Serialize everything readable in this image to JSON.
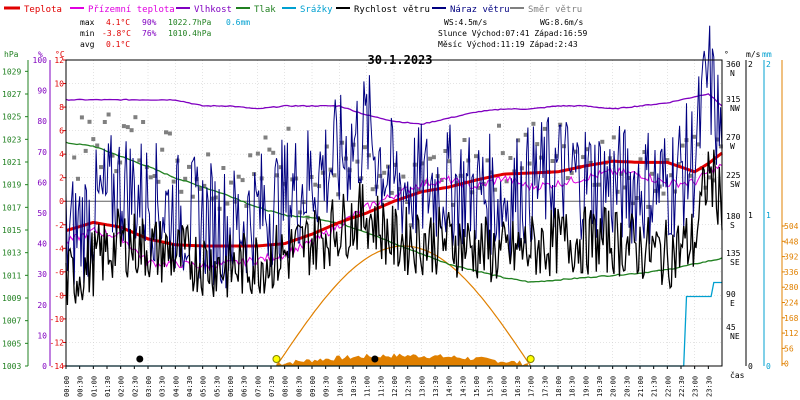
{
  "colors": {
    "teplota": "#e00000",
    "prizemni": "#e000e0",
    "vlhkost": "#8000c0",
    "tlak": "#208020",
    "srazky": "#00a0d0",
    "vitr": "#000000",
    "naraz": "#000080",
    "smer": "#808080",
    "radiation": "#e08000",
    "frame": "#000000",
    "grid": "#c8c8c8"
  },
  "legend": [
    {
      "label": "Teplota",
      "color": "#e00000"
    },
    {
      "label": "Přízemní teplota",
      "color": "#e000e0"
    },
    {
      "label": "Vlhkost",
      "color": "#8000c0"
    },
    {
      "label": "Tlak",
      "color": "#208020"
    },
    {
      "label": "Srážky",
      "color": "#00a0d0"
    },
    {
      "label": "Rychlost větru",
      "color": "#000000"
    },
    {
      "label": "Náraz větru",
      "color": "#000080"
    },
    {
      "label": "Směr větru",
      "color": "#808080"
    }
  ],
  "stats": {
    "max_label": "max",
    "min_label": "min",
    "avg_label": "avg",
    "max_temp": "4.1°C",
    "max_hum": "90%",
    "max_press": "1022.7hPa",
    "max_rain": "0.6mm",
    "min_temp": "-3.8°C",
    "min_hum": "76%",
    "min_press": "1010.4hPa",
    "avg_temp": "0.1°C"
  },
  "info": {
    "wind": "WS:4.5m/s",
    "gust": "WG:8.6m/s",
    "sun": "Slunce Východ:07:41  Západ:16:59",
    "moon": "Měsíc  Východ:11:19  Západ:2:43"
  },
  "chart_data": {
    "type": "line",
    "title": "30.1.2023",
    "xlabel": "čas",
    "x_ticks": [
      "00:00",
      "00:30",
      "01:00",
      "01:30",
      "02:00",
      "02:30",
      "03:00",
      "03:30",
      "04:00",
      "04:30",
      "05:00",
      "05:30",
      "06:00",
      "06:30",
      "07:00",
      "07:30",
      "08:00",
      "08:30",
      "09:00",
      "09:30",
      "10:00",
      "10:30",
      "11:00",
      "11:30",
      "12:00",
      "12:30",
      "13:00",
      "13:30",
      "14:00",
      "14:30",
      "15:00",
      "15:30",
      "16:00",
      "16:30",
      "17:00",
      "17:30",
      "18:00",
      "18:30",
      "19:00",
      "19:30",
      "20:00",
      "20:30",
      "21:00",
      "21:30",
      "22:00",
      "22:30",
      "23:00",
      "23:30"
    ],
    "axes": {
      "tlak_hpa": {
        "unit": "hPa",
        "ticks": [
          "1029",
          "1027",
          "1025",
          "1023",
          "1021",
          "1019",
          "1017",
          "1015",
          "1013",
          "1011",
          "1009",
          "1007",
          "1005",
          "1003"
        ],
        "range": [
          1003,
          1030
        ]
      },
      "vlhkost_pct": {
        "unit": "%",
        "ticks": [
          "100",
          "90",
          "80",
          "70",
          "60",
          "50",
          "40",
          "30",
          "20",
          "10",
          "0"
        ],
        "range": [
          0,
          100
        ]
      },
      "teplota_c": {
        "unit": "°C",
        "ticks": [
          "12",
          "10",
          "8",
          "6",
          "4",
          "2",
          "0",
          "-2",
          "-4",
          "-6",
          "-8",
          "-10",
          "-12",
          "-14"
        ],
        "range": [
          -14,
          12
        ]
      },
      "smer_deg": {
        "unit": "°",
        "ticks": [
          "360 N",
          "315 NW",
          "270 W",
          "225 SW",
          "180 S",
          "135 SE",
          "90 E",
          "45 NE"
        ]
      },
      "wind_ms": {
        "unit": "m/s",
        "ticks": [
          "2",
          "1",
          "0"
        ]
      },
      "rain_mm": {
        "unit": "mm",
        "ticks": [
          "2",
          "1",
          "0"
        ]
      },
      "radiation": {
        "ticks": [
          "504",
          "448",
          "392",
          "336",
          "280",
          "224",
          "168",
          "112",
          "56",
          "0"
        ]
      }
    },
    "series": [
      {
        "name": "Teplota",
        "unit": "°C",
        "x": [
          0,
          1,
          2,
          3,
          4,
          5,
          6,
          7,
          8,
          9,
          10,
          11,
          12,
          13,
          14,
          15,
          16,
          17,
          18,
          19,
          20,
          21,
          22,
          23,
          23.5,
          24
        ],
        "values": [
          -2.5,
          -1.8,
          -2.2,
          -3.2,
          -3.7,
          -3.8,
          -3.8,
          -3.8,
          -3.6,
          -2.8,
          -1.8,
          -1.0,
          0.0,
          0.8,
          1.2,
          1.8,
          2.3,
          2.4,
          2.5,
          3.0,
          3.4,
          3.3,
          3.3,
          2.5,
          3.2,
          4.1
        ]
      },
      {
        "name": "Přízemní teplota",
        "unit": "°C",
        "x": [
          0,
          1,
          2,
          3,
          4,
          5,
          6,
          7,
          8,
          9,
          10,
          11,
          12,
          13,
          14,
          15,
          16,
          17,
          18,
          19,
          20,
          21,
          22,
          23,
          23.5,
          24
        ],
        "values": [
          -3.5,
          -2.5,
          -3.0,
          -5.2,
          -5.3,
          -5.5,
          -5.3,
          -5.0,
          -4.5,
          -3.5,
          -2.0,
          -0.5,
          0.5,
          1.5,
          1.8,
          1.2,
          2.0,
          1.2,
          1.5,
          2.0,
          2.5,
          2.3,
          1.5,
          1.6,
          2.5,
          3.0
        ]
      },
      {
        "name": "Vlhkost",
        "unit": "%",
        "x": [
          0,
          1,
          2,
          3,
          4,
          5,
          6,
          7,
          8,
          9,
          10,
          11,
          12,
          13,
          14,
          15,
          16,
          17,
          18,
          19,
          20,
          21,
          22,
          23,
          23.5,
          24
        ],
        "values": [
          87,
          87,
          87,
          87,
          87,
          85,
          85,
          84,
          85,
          85,
          85,
          82,
          80,
          79,
          81,
          83,
          84,
          84,
          85,
          85,
          84,
          85,
          86,
          88,
          89,
          85
        ]
      },
      {
        "name": "Tlak",
        "unit": "hPa",
        "x": [
          0,
          1,
          2,
          3,
          4,
          5,
          6,
          7,
          8,
          9,
          10,
          11,
          12,
          13,
          14,
          15,
          16,
          17,
          18,
          19,
          20,
          21,
          22,
          23,
          24
        ],
        "values": [
          1022.7,
          1022.4,
          1021.5,
          1020.6,
          1019.6,
          1018.8,
          1018.0,
          1017.0,
          1016.3,
          1016.1,
          1015.6,
          1014.8,
          1013.8,
          1012.9,
          1012.0,
          1011.4,
          1010.8,
          1010.4,
          1010.6,
          1010.8,
          1011.0,
          1011.2,
          1011.5,
          1012.0,
          1012.5
        ]
      },
      {
        "name": "Srážky",
        "unit": "mm",
        "x": [
          0,
          22.6,
          22.7,
          23.6,
          23.7,
          24
        ],
        "values": [
          0,
          0,
          0.5,
          0.5,
          0.6,
          0.6
        ]
      },
      {
        "name": "Rychlost větru",
        "unit": "m/s",
        "x": [
          0,
          2,
          4,
          6,
          8,
          10,
          11,
          12,
          14,
          16,
          18,
          20,
          22,
          23,
          23.5,
          24
        ],
        "values": [
          0.6,
          0.9,
          0.8,
          0.7,
          0.8,
          1.0,
          1.1,
          0.9,
          0.9,
          0.8,
          0.9,
          0.9,
          0.8,
          0.9,
          1.4,
          1.2
        ]
      },
      {
        "name": "Náraz větru",
        "unit": "m/s",
        "x": [
          0,
          2,
          4,
          6,
          8,
          10,
          11,
          12,
          14,
          16,
          18,
          20,
          22,
          23,
          23.5,
          24
        ],
        "values": [
          0.9,
          1.3,
          1.1,
          1.0,
          1.2,
          1.5,
          1.7,
          1.3,
          1.3,
          1.2,
          1.4,
          1.3,
          1.3,
          1.5,
          2.1,
          1.6
        ]
      }
    ]
  }
}
